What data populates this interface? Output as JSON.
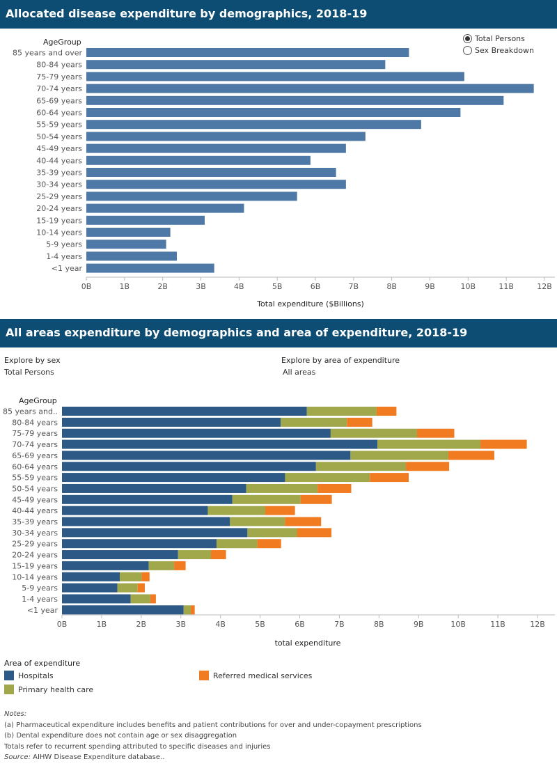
{
  "chart1": {
    "title": "Allocated disease expenditure by demographics, 2018-19",
    "y_header": "AgeGroup",
    "xlabel": "Total expenditure ($Billions)",
    "radio_options": [
      {
        "label": "Total Persons",
        "checked": true
      },
      {
        "label": "Sex Breakdown",
        "checked": false
      }
    ]
  },
  "chart2": {
    "title": "All areas expenditure by demographics and area of expenditure, 2018-19",
    "y_header": "AgeGroup",
    "xlabel": "total expenditure",
    "filters": {
      "sex_label": "Explore by sex",
      "sex_value": "Total Persons",
      "area_label": "Explore by area of expenditure",
      "area_value": "All areas"
    }
  },
  "legend": {
    "title": "Area of expenditure",
    "items": [
      {
        "label": "Hospitals",
        "color": "#2c5985"
      },
      {
        "label": "Primary health care",
        "color": "#a0a84b"
      },
      {
        "label": "Referred medical services",
        "color": "#f07b20"
      }
    ]
  },
  "notes": {
    "heading": "Notes:",
    "lines": [
      "(a) Pharmaceutical expenditure includes benefits and patient contributions for over and under-copayment prescriptions",
      "(b) Dental expenditure does not contain age or sex disaggregation",
      "Totals refer to recurrent spending attributed to specific diseases and injuries"
    ],
    "source_label": "Source:",
    "source_text": " AIHW Disease Expenditure database.."
  },
  "chart_data": [
    {
      "type": "bar",
      "orientation": "horizontal",
      "title": "Allocated disease expenditure by demographics, 2018-19",
      "ylabel": "AgeGroup",
      "xlabel": "Total expenditure ($Billions)",
      "categories": [
        "85 years and over",
        "80-84 years",
        "75-79 years",
        "70-74 years",
        "65-69 years",
        "60-64 years",
        "55-59 years",
        "50-54 years",
        "45-49 years",
        "40-44 years",
        "35-39 years",
        "30-34 years",
        "25-29 years",
        "20-24 years",
        "15-19 years",
        "10-14 years",
        "5-9 years",
        "1-4 years",
        "<1 year"
      ],
      "values": [
        8.45,
        7.83,
        9.9,
        11.72,
        10.93,
        9.8,
        8.77,
        7.31,
        6.8,
        5.87,
        6.54,
        6.8,
        5.52,
        4.13,
        3.1,
        2.2,
        2.09,
        2.37,
        3.35
      ],
      "xlim": [
        0,
        12
      ],
      "xticks": [
        "0B",
        "1B",
        "2B",
        "3B",
        "4B",
        "5B",
        "6B",
        "7B",
        "8B",
        "9B",
        "10B",
        "11B",
        "12B"
      ],
      "bar_color": "#4e78a6",
      "grid": false
    },
    {
      "type": "bar",
      "orientation": "horizontal",
      "stacked": true,
      "title": "All areas expenditure by demographics and area of expenditure, 2018-19",
      "ylabel": "AgeGroup",
      "xlabel": "total expenditure",
      "categories": [
        "85 years and..",
        "80-84 years",
        "75-79 years",
        "70-74 years",
        "65-69 years",
        "60-64 years",
        "55-59 years",
        "50-54 years",
        "45-49 years",
        "40-44 years",
        "35-39 years",
        "30-34 years",
        "25-29 years",
        "20-24 years",
        "15-19 years",
        "10-14 years",
        "5-9 years",
        "1-4 years",
        "<1 year"
      ],
      "series": [
        {
          "name": "Hospitals",
          "color": "#2c5985",
          "values": [
            6.18,
            5.52,
            6.78,
            7.96,
            7.28,
            6.41,
            5.63,
            4.65,
            4.3,
            3.68,
            4.24,
            4.68,
            3.9,
            2.93,
            2.19,
            1.46,
            1.4,
            1.73,
            3.07
          ]
        },
        {
          "name": "Primary health care",
          "color": "#a0a84b",
          "values": [
            1.76,
            1.67,
            2.18,
            2.6,
            2.47,
            2.27,
            2.14,
            1.8,
            1.72,
            1.45,
            1.39,
            1.25,
            1.03,
            0.83,
            0.64,
            0.55,
            0.51,
            0.5,
            0.18
          ]
        },
        {
          "name": "Referred medical services",
          "color": "#f07b20",
          "values": [
            0.5,
            0.64,
            0.94,
            1.17,
            1.16,
            1.09,
            0.98,
            0.85,
            0.79,
            0.75,
            0.91,
            0.87,
            0.6,
            0.38,
            0.29,
            0.2,
            0.18,
            0.14,
            0.1
          ]
        }
      ],
      "xlim": [
        0,
        12
      ],
      "xticks": [
        "0B",
        "1B",
        "2B",
        "3B",
        "4B",
        "5B",
        "6B",
        "7B",
        "8B",
        "9B",
        "10B",
        "11B",
        "12B"
      ],
      "legend_position": "bottom",
      "grid": false
    }
  ]
}
